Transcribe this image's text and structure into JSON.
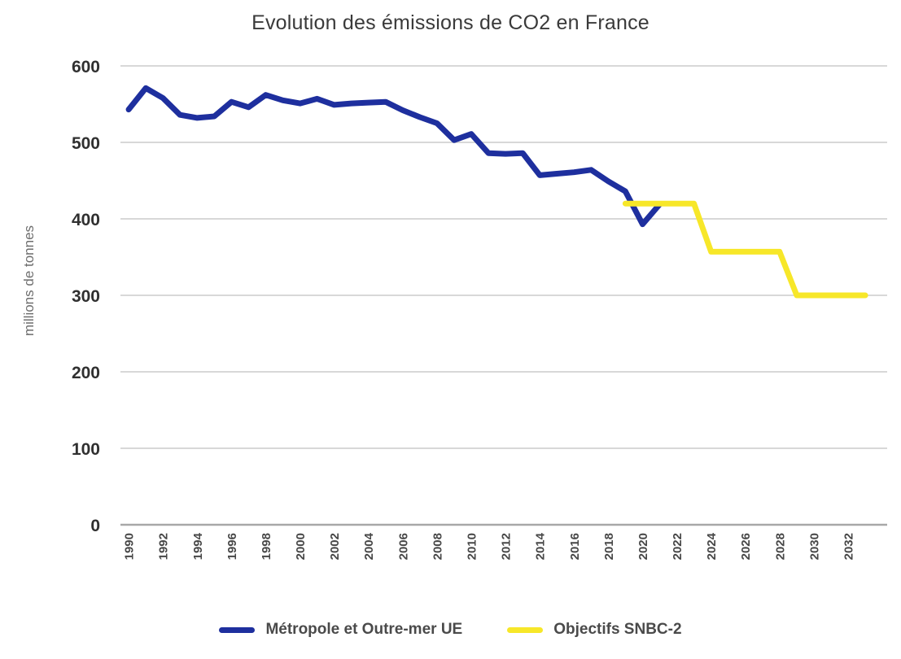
{
  "title": "Evolution des émissions de CO2 en France",
  "y_axis_label": "millions de tonnes",
  "colors": {
    "blue_series": "#1e2f9e",
    "yellow_series": "#f7e729",
    "grid": "#d8d8d8",
    "axis": "#a8a8a8",
    "title_text": "#3a3a3a",
    "tick_text": "#474747"
  },
  "legend": [
    {
      "label": "Métropole et Outre-mer UE",
      "color": "#1e2f9e"
    },
    {
      "label": "Objectifs SNBC-2",
      "color": "#f7e729"
    }
  ],
  "chart_data": {
    "type": "line",
    "title": "Evolution des émissions de CO2 en France",
    "xlabel": "",
    "ylabel": "millions de tonnes",
    "ylim": [
      0,
      600
    ],
    "y_ticks": [
      0,
      100,
      200,
      300,
      400,
      500,
      600
    ],
    "x_tick_years": [
      1990,
      1992,
      1994,
      1996,
      1998,
      2000,
      2002,
      2004,
      2006,
      2008,
      2010,
      2012,
      2014,
      2016,
      2018,
      2020,
      2022,
      2024,
      2026,
      2028,
      2030,
      2032
    ],
    "grid": "horizontal",
    "legend_position": "bottom",
    "series": [
      {
        "name": "Métropole et Outre-mer UE",
        "color": "#1e2f9e",
        "x": [
          1990,
          1991,
          1992,
          1993,
          1994,
          1995,
          1996,
          1997,
          1998,
          1999,
          2000,
          2001,
          2002,
          2003,
          2004,
          2005,
          2006,
          2007,
          2008,
          2009,
          2010,
          2011,
          2012,
          2013,
          2014,
          2015,
          2016,
          2017,
          2018,
          2019,
          2020,
          2021
        ],
        "values": [
          543,
          571,
          558,
          536,
          532,
          534,
          553,
          546,
          562,
          555,
          551,
          557,
          549,
          551,
          552,
          553,
          542,
          533,
          525,
          503,
          511,
          486,
          485,
          486,
          457,
          459,
          461,
          464,
          449,
          436,
          393,
          419
        ]
      },
      {
        "name": "Objectifs SNBC-2",
        "color": "#f7e729",
        "x": [
          2019,
          2020,
          2021,
          2022,
          2023,
          2024,
          2025,
          2026,
          2027,
          2028,
          2029,
          2030,
          2031,
          2032,
          2033
        ],
        "values": [
          420,
          420,
          420,
          420,
          420,
          357,
          357,
          357,
          357,
          357,
          300,
          300,
          300,
          300,
          300
        ]
      }
    ]
  }
}
